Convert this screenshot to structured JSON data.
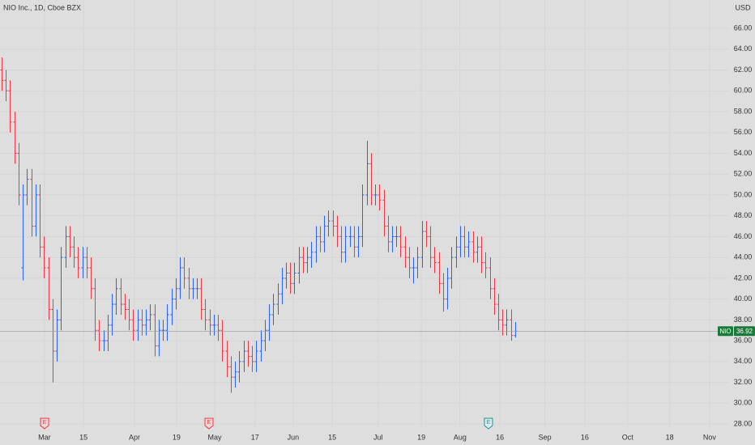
{
  "chart_data": {
    "type": "ohlc",
    "title": "NIO Inc., 1D, Cboe BZX",
    "currency": "USD",
    "symbol": "NIO",
    "last_price": 36.92,
    "up_color": "#2962ff",
    "down_color": "#f23645",
    "last_color": "#1b7a3a",
    "events": [
      "E",
      "E",
      "E"
    ],
    "xlim": [
      -0.38,
      171.4
    ],
    "xticks": [
      {
        "value": 10.1,
        "label": "Mar"
      },
      {
        "value": 19.3,
        "label": "15"
      },
      {
        "value": 31.3,
        "label": "Apr"
      },
      {
        "value": 41.2,
        "label": "19"
      },
      {
        "value": 50.2,
        "label": "May"
      },
      {
        "value": 59.7,
        "label": "17"
      },
      {
        "value": 68.7,
        "label": "Jun"
      },
      {
        "value": 77.9,
        "label": "15"
      },
      {
        "value": 88.7,
        "label": "Jul"
      },
      {
        "value": 98.9,
        "label": "19"
      },
      {
        "value": 108,
        "label": "Aug"
      },
      {
        "value": 117.4,
        "label": "16"
      },
      {
        "value": 128,
        "label": "Sep"
      },
      {
        "value": 137.4,
        "label": "16"
      },
      {
        "value": 147.5,
        "label": "Oct"
      },
      {
        "value": 157.4,
        "label": "18"
      },
      {
        "value": 166.8,
        "label": "Nov"
      }
    ],
    "ylim": [
      27.54,
      68.72
    ],
    "yticks": [
      {
        "value": 28,
        "label": "28.00"
      },
      {
        "value": 30,
        "label": "30.00"
      },
      {
        "value": 32,
        "label": "32.00"
      },
      {
        "value": 34,
        "label": "34.00"
      },
      {
        "value": 36,
        "label": "36.00"
      },
      {
        "value": 38,
        "label": "38.00"
      },
      {
        "value": 40,
        "label": "40.00"
      },
      {
        "value": 42,
        "label": "42.00"
      },
      {
        "value": 44,
        "label": "44.00"
      },
      {
        "value": 46,
        "label": "46.00"
      },
      {
        "value": 48,
        "label": "48.00"
      },
      {
        "value": 50,
        "label": "50.00"
      },
      {
        "value": 52,
        "label": "52.00"
      },
      {
        "value": 54,
        "label": "54.00"
      },
      {
        "value": 56,
        "label": "56.00"
      },
      {
        "value": 58,
        "label": "58.00"
      },
      {
        "value": 60,
        "label": "60.00"
      },
      {
        "value": 62,
        "label": "62.00"
      },
      {
        "value": 64,
        "label": "64.00"
      },
      {
        "value": 66,
        "label": "66.00"
      }
    ],
    "open": [
      62,
      61,
      60,
      57,
      54,
      43,
      50,
      51.5,
      47,
      50,
      45,
      43,
      39,
      35,
      38,
      44,
      46,
      45,
      44,
      43,
      44,
      43,
      41,
      37,
      36,
      36,
      37.5,
      39.5,
      41,
      39.5,
      39,
      38,
      37,
      38,
      37.5,
      38,
      38.5,
      35.5,
      37,
      37,
      38.5,
      40,
      41,
      43,
      42,
      41,
      41,
      41,
      39,
      38,
      37.5,
      37.5,
      37,
      35,
      33.5,
      32.5,
      33,
      34,
      35,
      34.5,
      34,
      35,
      36,
      37,
      38.5,
      39.5,
      40.5,
      42,
      42.5,
      41.5,
      42.5,
      44,
      43.5,
      44,
      44.5,
      46,
      45.5,
      47,
      47.5,
      47,
      46,
      44.5,
      46,
      46,
      45,
      46,
      50,
      53,
      50,
      50,
      49.5,
      47,
      45.5,
      46,
      46,
      45,
      44,
      43,
      43,
      44,
      46.5,
      46,
      44,
      43.5,
      41.5,
      40,
      42,
      44,
      45,
      46,
      45,
      45.5,
      44.5,
      45,
      43.5,
      43,
      41,
      39.5,
      38,
      37.5,
      38,
      36.5
    ],
    "high": [
      63.2,
      62,
      61,
      58,
      55,
      51,
      52.5,
      52.5,
      51,
      51,
      46,
      44,
      40,
      39,
      45,
      47,
      47,
      46,
      45,
      45,
      45,
      44,
      42,
      38,
      37,
      38.5,
      40.5,
      42,
      42,
      40.5,
      40,
      39,
      39,
      39,
      39,
      39.5,
      39.5,
      38,
      38,
      39.5,
      41,
      42,
      44,
      44,
      43,
      42,
      42,
      42,
      40,
      39,
      38.5,
      38.5,
      38,
      36,
      34.5,
      34,
      35,
      36,
      36,
      35.5,
      36,
      37,
      38,
      39.5,
      40.5,
      41.5,
      43,
      43.5,
      43.5,
      43.5,
      45,
      45,
      45,
      45.5,
      47,
      47,
      48,
      48.5,
      48.5,
      48,
      47,
      47,
      47,
      47,
      47,
      51,
      55.2,
      54,
      51,
      51,
      50.5,
      48,
      47,
      47,
      47,
      46,
      45,
      44,
      45,
      47.5,
      47.5,
      47,
      45,
      44.5,
      42.5,
      43,
      45,
      46,
      47,
      47,
      46.5,
      46.5,
      46,
      46,
      44.5,
      44,
      42,
      40.5,
      39,
      39,
      39,
      37.8
    ],
    "low": [
      60,
      59,
      56,
      53,
      49,
      41.8,
      49,
      46,
      46,
      44,
      42,
      38,
      32,
      34,
      37,
      43,
      44,
      43,
      42,
      42,
      42,
      40,
      36,
      35,
      35,
      35,
      36.5,
      38.5,
      38.5,
      38,
      37,
      36,
      36,
      36.5,
      36.5,
      37,
      34.5,
      34.5,
      36,
      36,
      37.5,
      39,
      40,
      41,
      40,
      40,
      40,
      38,
      37,
      36.5,
      36.5,
      36,
      34,
      32.5,
      31,
      31.5,
      32,
      33,
      33.5,
      33,
      33,
      34,
      35,
      36,
      37.5,
      38.5,
      39.5,
      41,
      40.5,
      40.5,
      41.5,
      42.5,
      42.5,
      43,
      43.5,
      44.5,
      44.5,
      46,
      46,
      45,
      43.5,
      43.5,
      45,
      44,
      44,
      45,
      49,
      49,
      49,
      48.5,
      46,
      44.5,
      44.5,
      45,
      44,
      43,
      42,
      41.5,
      42,
      43,
      45,
      43,
      42.5,
      40.5,
      38.8,
      39,
      41,
      43,
      44,
      44,
      44,
      43.5,
      43.5,
      42.5,
      42,
      40,
      38.5,
      37,
      36.5,
      36.5,
      36,
      36.3
    ],
    "close": [
      61,
      60,
      57,
      54,
      50,
      50,
      51.5,
      47,
      50,
      45,
      43,
      39,
      35,
      38,
      44,
      46,
      45,
      44,
      43,
      44,
      43,
      41,
      37,
      36,
      36,
      37.5,
      39.5,
      41,
      39.5,
      39,
      38,
      37,
      38,
      37.5,
      38,
      38.5,
      35.5,
      37,
      37,
      38.5,
      40,
      41,
      43,
      42,
      41,
      41,
      41,
      39,
      38,
      37.5,
      37.5,
      37,
      35,
      33.5,
      32.5,
      33,
      34,
      35,
      34.5,
      34,
      35,
      36,
      37,
      38.5,
      39.5,
      40.5,
      42,
      42.5,
      41.5,
      42.5,
      44,
      43.5,
      44,
      44.5,
      46,
      45.5,
      47,
      47.5,
      47,
      46,
      44.5,
      46,
      46,
      45,
      46,
      50,
      53,
      50,
      50,
      49.5,
      47,
      45.5,
      46,
      46,
      45,
      44,
      43,
      43,
      44,
      46.5,
      46,
      44,
      43.5,
      41.5,
      40,
      42,
      44,
      45,
      46,
      45,
      45.5,
      44.5,
      45,
      43.5,
      43,
      41,
      39.5,
      38,
      37.5,
      38,
      36.5,
      36.92
    ]
  }
}
